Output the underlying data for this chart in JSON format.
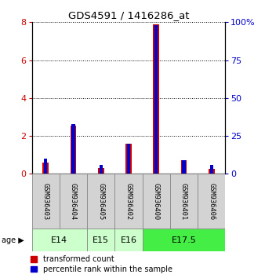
{
  "title": "GDS4591 / 1416286_at",
  "samples": [
    "GSM936403",
    "GSM936404",
    "GSM936405",
    "GSM936402",
    "GSM936400",
    "GSM936401",
    "GSM936406"
  ],
  "transformed_count": [
    0.6,
    2.55,
    0.3,
    1.6,
    7.9,
    0.7,
    0.25
  ],
  "percentile_rank": [
    10,
    33,
    6,
    20,
    98,
    9,
    6
  ],
  "age_groups": [
    {
      "label": "E14",
      "start": 0,
      "end": 2,
      "color": "#ccffcc"
    },
    {
      "label": "E15",
      "start": 2,
      "end": 3,
      "color": "#ccffcc"
    },
    {
      "label": "E16",
      "start": 3,
      "end": 4,
      "color": "#ccffcc"
    },
    {
      "label": "E17.5",
      "start": 4,
      "end": 7,
      "color": "#44ee44"
    }
  ],
  "red_bar_width": 0.22,
  "blue_bar_width": 0.12,
  "red_color": "#cc0000",
  "blue_color": "#0000cc",
  "left_ylim": [
    0,
    8
  ],
  "right_ylim": [
    0,
    100
  ],
  "left_yticks": [
    0,
    2,
    4,
    6,
    8
  ],
  "right_yticks": [
    0,
    25,
    50,
    75,
    100
  ],
  "label_tc": "transformed count",
  "label_pr": "percentile rank within the sample"
}
